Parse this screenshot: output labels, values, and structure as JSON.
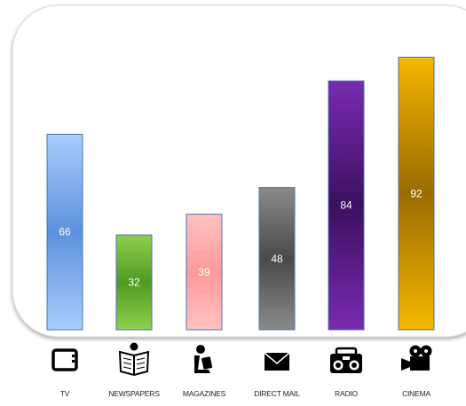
{
  "chart_data": {
    "type": "bar",
    "categories": [
      "TV",
      "NEWSPAPERS",
      "MAGAZINES",
      "DIRECT MAIL",
      "RADIO",
      "CINEMA"
    ],
    "values": [
      66,
      32,
      39,
      48,
      84,
      92
    ],
    "data_labels": [
      "66",
      "32",
      "39",
      "48",
      "84",
      "92"
    ],
    "bar_colors": [
      {
        "top": "#a9cdfb",
        "mid": "#5b92dc",
        "bottom": "#a9cdfb"
      },
      {
        "top": "#8fcf4e",
        "mid": "#4f9a22",
        "bottom": "#8fcf4e"
      },
      {
        "top": "#ffc2c2",
        "mid": "#ff9a9a",
        "bottom": "#ffc2c2"
      },
      {
        "top": "#8a8a8a",
        "mid": "#4a4a4a",
        "bottom": "#8a8a8a"
      },
      {
        "top": "#7a2bb0",
        "mid": "#3c1060",
        "bottom": "#7a2bb0"
      },
      {
        "top": "#f5b800",
        "mid": "#9a6b00",
        "bottom": "#f5b800"
      }
    ],
    "icons": [
      "tv-icon",
      "newspaper-reader-icon",
      "magazine-reader-icon",
      "envelope-icon",
      "boombox-icon",
      "movie-camera-icon"
    ],
    "ylim": [
      0,
      100
    ],
    "grid": false,
    "legend": "none",
    "title": "",
    "xlabel": "",
    "ylabel": ""
  }
}
